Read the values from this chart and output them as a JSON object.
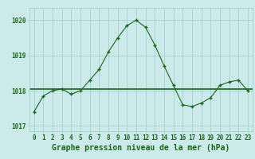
{
  "hours": [
    0,
    1,
    2,
    3,
    4,
    5,
    6,
    7,
    8,
    9,
    10,
    11,
    12,
    13,
    14,
    15,
    16,
    17,
    18,
    19,
    20,
    21,
    22,
    23
  ],
  "pressure": [
    1017.4,
    1017.85,
    1018.0,
    1018.05,
    1017.9,
    1018.0,
    1018.3,
    1018.6,
    1019.1,
    1019.5,
    1019.85,
    1020.0,
    1019.8,
    1019.3,
    1018.7,
    1018.15,
    1017.6,
    1017.55,
    1017.65,
    1017.8,
    1018.15,
    1018.25,
    1018.3,
    1018.0
  ],
  "mean_line": 1018.05,
  "line_color": "#1a6618",
  "bg_color": "#cceaea",
  "grid_color": "#99cccc",
  "text_color": "#1a6618",
  "xlabel": "Graphe pression niveau de la mer (hPa)",
  "ylim": [
    1016.85,
    1020.35
  ],
  "yticks": [
    1017,
    1018,
    1019,
    1020
  ],
  "xticks": [
    0,
    1,
    2,
    3,
    4,
    5,
    6,
    7,
    8,
    9,
    10,
    11,
    12,
    13,
    14,
    15,
    16,
    17,
    18,
    19,
    20,
    21,
    22,
    23
  ],
  "marker": "+",
  "markersize": 3.5,
  "linewidth": 0.8,
  "mean_linewidth": 1.2,
  "tick_fontsize": 5.5,
  "xlabel_fontsize": 7.0
}
